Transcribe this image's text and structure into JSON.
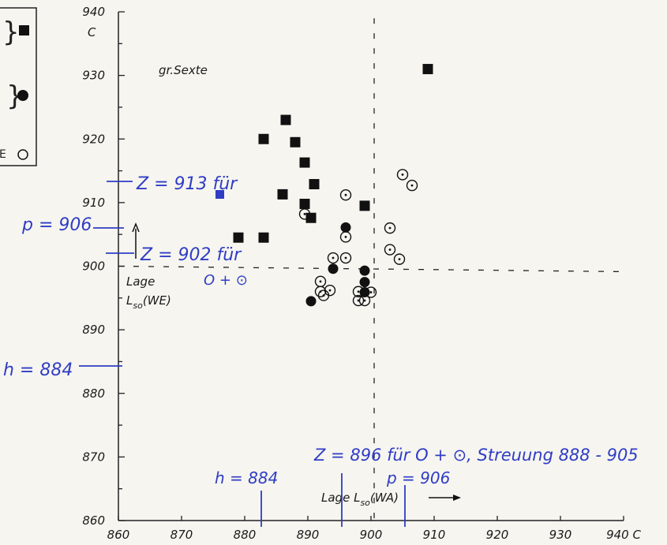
{
  "chart_data": {
    "type": "scatter",
    "xlim": [
      860,
      940
    ],
    "ylim": [
      860,
      940
    ],
    "x_ticks": [
      860,
      870,
      880,
      890,
      900,
      910,
      920,
      930,
      940
    ],
    "y_ticks": [
      860,
      870,
      880,
      890,
      900,
      910,
      920,
      930,
      940
    ],
    "x_tick_labels": [
      "860",
      "870",
      "880",
      "890",
      "900",
      "910",
      "920",
      "930",
      "940 C"
    ],
    "y_tick_labels": [
      "860",
      "870",
      "880",
      "890",
      "900",
      "910",
      "920",
      "930",
      "940"
    ],
    "y_unit": "C",
    "xlabel": "Lage L",
    "xlabel_sub": "so",
    "xlabel_suffix": "(WA)",
    "ylabel_line1": "Lage",
    "ylabel_line2": "L",
    "ylabel_sub": "so",
    "ylabel_suffix": "(WE)",
    "annotation": "gr.Sexte",
    "legend_fragments": [
      "}",
      "}",
      "E"
    ],
    "reference_lines": {
      "vertical_x": 900.5,
      "horizontal_y": 900,
      "style": "dashed"
    },
    "series": [
      {
        "marker": "filled-square",
        "points": [
          [
            879,
            904.5
          ],
          [
            883,
            904.5
          ],
          [
            883,
            920
          ],
          [
            886,
            911.3
          ],
          [
            886.5,
            923
          ],
          [
            888,
            919.5
          ],
          [
            889.5,
            916.3
          ],
          [
            889.5,
            909.8
          ],
          [
            890.5,
            907.6
          ],
          [
            891,
            912.9
          ],
          [
            899,
            909.5
          ],
          [
            909,
            931
          ]
        ]
      },
      {
        "marker": "filled-circle",
        "points": [
          [
            890.5,
            894.5
          ],
          [
            894,
            899.6
          ],
          [
            896,
            906.1
          ],
          [
            899,
            899.3
          ],
          [
            899,
            897.5
          ],
          [
            899,
            895.9
          ]
        ]
      },
      {
        "marker": "open-circle-dot",
        "points": [
          [
            889.5,
            908.2
          ],
          [
            892,
            897.6
          ],
          [
            892,
            896.0
          ],
          [
            892.5,
            895.4
          ],
          [
            893.5,
            896.2
          ],
          [
            894,
            901.3
          ],
          [
            896,
            911.2
          ],
          [
            896,
            904.6
          ],
          [
            896,
            901.3
          ],
          [
            898,
            896.0
          ],
          [
            898,
            894.6
          ],
          [
            899,
            894.6
          ],
          [
            900,
            895.9
          ],
          [
            903,
            906.0
          ],
          [
            903,
            902.6
          ],
          [
            904.5,
            901.1
          ],
          [
            905,
            914.4
          ],
          [
            906.5,
            912.7
          ]
        ]
      }
    ]
  },
  "handwritten": {
    "z913": "Z = 913 für",
    "p906_left": "p = 906",
    "z902": "Z = 902 für",
    "z902_line2": "O + ⊙",
    "h884_left": "h = 884",
    "z896": "Z = 896 für O + ⊙, Streuung 888 - 905",
    "h884_bottom": "h = 884",
    "p906_bottom": "p = 906"
  },
  "colors": {
    "ink": "#2f3dc4",
    "marker": "#111111",
    "paper": "#f6f5f0"
  }
}
